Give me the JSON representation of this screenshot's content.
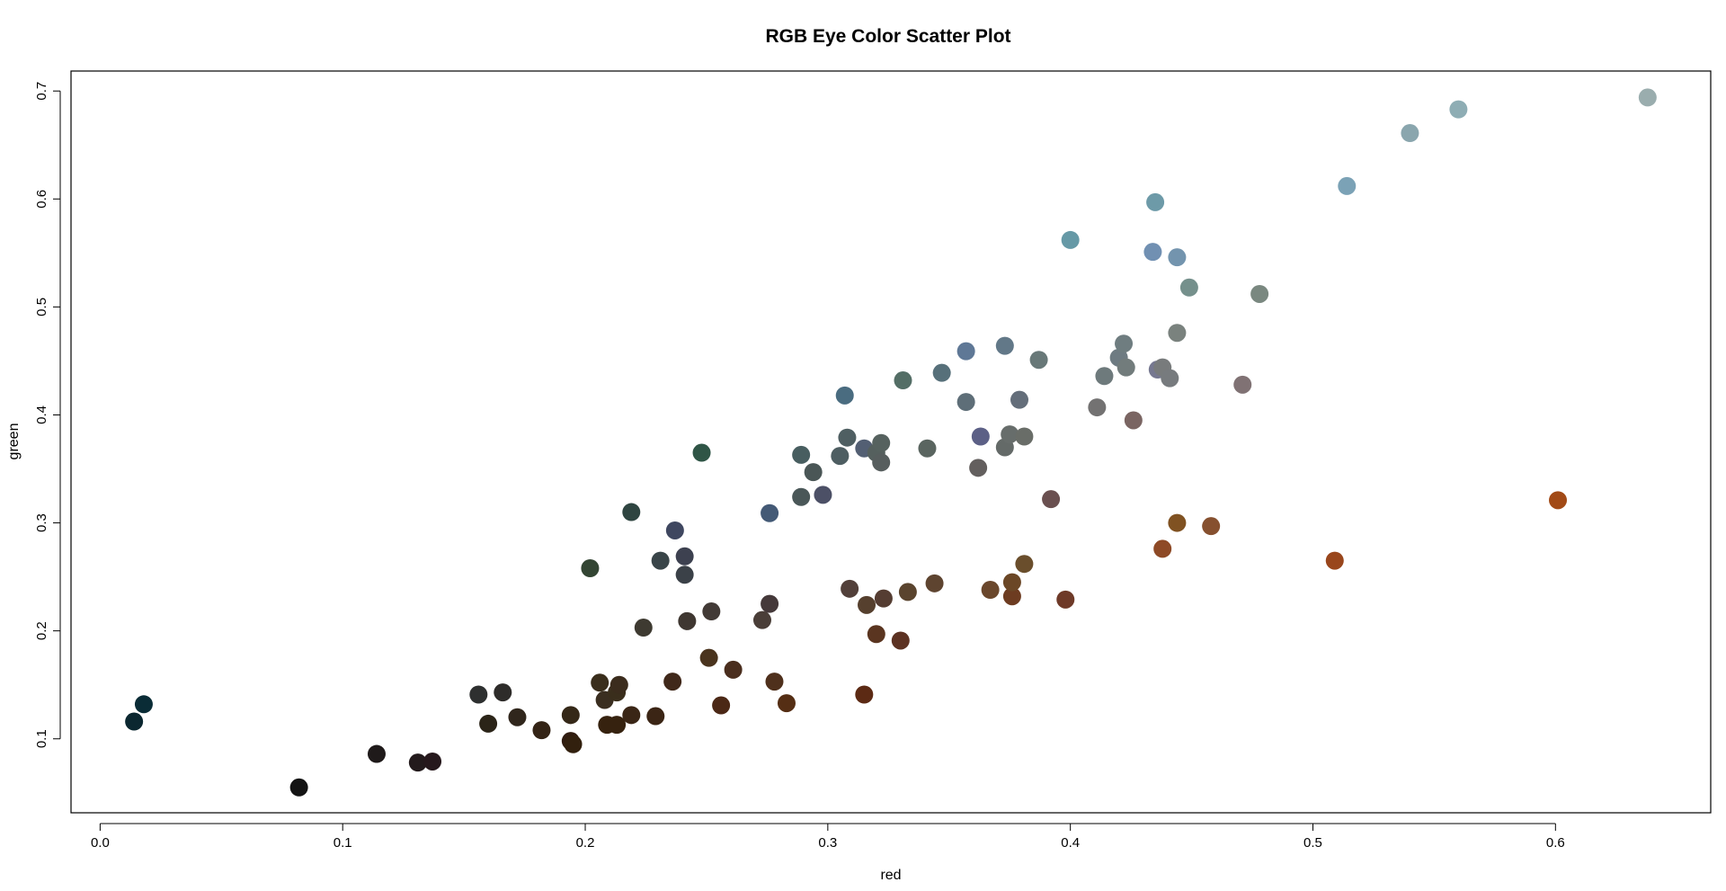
{
  "chart_data": {
    "type": "scatter",
    "title": "RGB Eye Color Scatter Plot",
    "xlabel": "red",
    "ylabel": "green",
    "xlim": [
      -0.012,
      0.664
    ],
    "ylim": [
      0.0315,
      0.7185
    ],
    "xticks": [
      {
        "value": 0.0,
        "label": "0.0"
      },
      {
        "value": 0.1,
        "label": "0.1"
      },
      {
        "value": 0.2,
        "label": "0.2"
      },
      {
        "value": 0.3,
        "label": "0.3"
      },
      {
        "value": 0.4,
        "label": "0.4"
      },
      {
        "value": 0.5,
        "label": "0.5"
      },
      {
        "value": 0.6,
        "label": "0.6"
      }
    ],
    "yticks": [
      {
        "value": 0.1,
        "label": "0.1"
      },
      {
        "value": 0.2,
        "label": "0.2"
      },
      {
        "value": 0.3,
        "label": "0.3"
      },
      {
        "value": 0.4,
        "label": "0.4"
      },
      {
        "value": 0.5,
        "label": "0.5"
      },
      {
        "value": 0.6,
        "label": "0.6"
      },
      {
        "value": 0.7,
        "label": "0.7"
      }
    ],
    "grid": false,
    "points": [
      {
        "x": 0.014,
        "y": 0.116,
        "color": "#0b2730"
      },
      {
        "x": 0.018,
        "y": 0.132,
        "color": "#0a2c36"
      },
      {
        "x": 0.082,
        "y": 0.055,
        "color": "#141414"
      },
      {
        "x": 0.114,
        "y": 0.086,
        "color": "#1f1a1a"
      },
      {
        "x": 0.131,
        "y": 0.078,
        "color": "#231a1c"
      },
      {
        "x": 0.137,
        "y": 0.079,
        "color": "#26181c"
      },
      {
        "x": 0.156,
        "y": 0.141,
        "color": "#2e3030"
      },
      {
        "x": 0.16,
        "y": 0.114,
        "color": "#2b2418"
      },
      {
        "x": 0.166,
        "y": 0.143,
        "color": "#2e2c2a"
      },
      {
        "x": 0.172,
        "y": 0.12,
        "color": "#30261c"
      },
      {
        "x": 0.182,
        "y": 0.108,
        "color": "#342416"
      },
      {
        "x": 0.194,
        "y": 0.122,
        "color": "#352818"
      },
      {
        "x": 0.194,
        "y": 0.098,
        "color": "#301c10"
      },
      {
        "x": 0.195,
        "y": 0.095,
        "color": "#32200e"
      },
      {
        "x": 0.202,
        "y": 0.258,
        "color": "#334533"
      },
      {
        "x": 0.206,
        "y": 0.152,
        "color": "#3a2e1c"
      },
      {
        "x": 0.208,
        "y": 0.136,
        "color": "#3a2e20"
      },
      {
        "x": 0.209,
        "y": 0.113,
        "color": "#36220f"
      },
      {
        "x": 0.213,
        "y": 0.113,
        "color": "#36220f"
      },
      {
        "x": 0.213,
        "y": 0.143,
        "color": "#3a2e1c"
      },
      {
        "x": 0.214,
        "y": 0.15,
        "color": "#3b2c1d"
      },
      {
        "x": 0.219,
        "y": 0.31,
        "color": "#2f4541"
      },
      {
        "x": 0.219,
        "y": 0.122,
        "color": "#3a2616"
      },
      {
        "x": 0.224,
        "y": 0.203,
        "color": "#3e3a31"
      },
      {
        "x": 0.229,
        "y": 0.121,
        "color": "#3b2515"
      },
      {
        "x": 0.231,
        "y": 0.265,
        "color": "#3a4549"
      },
      {
        "x": 0.236,
        "y": 0.153,
        "color": "#40281a"
      },
      {
        "x": 0.237,
        "y": 0.293,
        "color": "#3f4760"
      },
      {
        "x": 0.241,
        "y": 0.269,
        "color": "#3d4150"
      },
      {
        "x": 0.241,
        "y": 0.252,
        "color": "#3b4148"
      },
      {
        "x": 0.242,
        "y": 0.209,
        "color": "#3f3731"
      },
      {
        "x": 0.248,
        "y": 0.365,
        "color": "#2f5546"
      },
      {
        "x": 0.251,
        "y": 0.175,
        "color": "#4a341e"
      },
      {
        "x": 0.252,
        "y": 0.218,
        "color": "#423a36"
      },
      {
        "x": 0.256,
        "y": 0.131,
        "color": "#4b2816"
      },
      {
        "x": 0.261,
        "y": 0.164,
        "color": "#4a2e1e"
      },
      {
        "x": 0.273,
        "y": 0.21,
        "color": "#4a3e38"
      },
      {
        "x": 0.276,
        "y": 0.225,
        "color": "#45393a"
      },
      {
        "x": 0.276,
        "y": 0.309,
        "color": "#445a76"
      },
      {
        "x": 0.278,
        "y": 0.153,
        "color": "#4f301c"
      },
      {
        "x": 0.283,
        "y": 0.133,
        "color": "#552e14"
      },
      {
        "x": 0.289,
        "y": 0.363,
        "color": "#485e60"
      },
      {
        "x": 0.289,
        "y": 0.324,
        "color": "#4a5758"
      },
      {
        "x": 0.294,
        "y": 0.347,
        "color": "#4a5656"
      },
      {
        "x": 0.298,
        "y": 0.326,
        "color": "#4c5066"
      },
      {
        "x": 0.305,
        "y": 0.362,
        "color": "#4e5e62"
      },
      {
        "x": 0.307,
        "y": 0.418,
        "color": "#4a6c80"
      },
      {
        "x": 0.308,
        "y": 0.379,
        "color": "#4f5f62"
      },
      {
        "x": 0.309,
        "y": 0.239,
        "color": "#52403a"
      },
      {
        "x": 0.315,
        "y": 0.141,
        "color": "#5c2a14"
      },
      {
        "x": 0.315,
        "y": 0.369,
        "color": "#535f73"
      },
      {
        "x": 0.316,
        "y": 0.224,
        "color": "#56402e"
      },
      {
        "x": 0.32,
        "y": 0.197,
        "color": "#5a3520"
      },
      {
        "x": 0.32,
        "y": 0.365,
        "color": "#55605e"
      },
      {
        "x": 0.322,
        "y": 0.374,
        "color": "#56625f"
      },
      {
        "x": 0.322,
        "y": 0.356,
        "color": "#575e5e"
      },
      {
        "x": 0.323,
        "y": 0.23,
        "color": "#553d32"
      },
      {
        "x": 0.33,
        "y": 0.191,
        "color": "#5c3222"
      },
      {
        "x": 0.331,
        "y": 0.432,
        "color": "#546e66"
      },
      {
        "x": 0.333,
        "y": 0.236,
        "color": "#5a442e"
      },
      {
        "x": 0.341,
        "y": 0.369,
        "color": "#5a6560"
      },
      {
        "x": 0.344,
        "y": 0.244,
        "color": "#5e4430"
      },
      {
        "x": 0.347,
        "y": 0.439,
        "color": "#57707a"
      },
      {
        "x": 0.357,
        "y": 0.459,
        "color": "#5f7896"
      },
      {
        "x": 0.357,
        "y": 0.412,
        "color": "#5e6e78"
      },
      {
        "x": 0.362,
        "y": 0.351,
        "color": "#635f5e"
      },
      {
        "x": 0.363,
        "y": 0.38,
        "color": "#5c6086"
      },
      {
        "x": 0.367,
        "y": 0.238,
        "color": "#6a472c"
      },
      {
        "x": 0.373,
        "y": 0.37,
        "color": "#646a68"
      },
      {
        "x": 0.373,
        "y": 0.464,
        "color": "#627888"
      },
      {
        "x": 0.375,
        "y": 0.382,
        "color": "#676d6b"
      },
      {
        "x": 0.376,
        "y": 0.232,
        "color": "#6d3c21"
      },
      {
        "x": 0.376,
        "y": 0.245,
        "color": "#6b4726"
      },
      {
        "x": 0.379,
        "y": 0.414,
        "color": "#646e7a"
      },
      {
        "x": 0.381,
        "y": 0.38,
        "color": "#696d68"
      },
      {
        "x": 0.381,
        "y": 0.262,
        "color": "#6a4e2c"
      },
      {
        "x": 0.387,
        "y": 0.451,
        "color": "#687878"
      },
      {
        "x": 0.392,
        "y": 0.322,
        "color": "#6a5050"
      },
      {
        "x": 0.398,
        "y": 0.229,
        "color": "#6e3a28"
      },
      {
        "x": 0.4,
        "y": 0.562,
        "color": "#6699a6"
      },
      {
        "x": 0.411,
        "y": 0.407,
        "color": "#737272"
      },
      {
        "x": 0.414,
        "y": 0.436,
        "color": "#6e7a7c"
      },
      {
        "x": 0.42,
        "y": 0.453,
        "color": "#6e7b82"
      },
      {
        "x": 0.422,
        "y": 0.466,
        "color": "#6f7d80"
      },
      {
        "x": 0.423,
        "y": 0.444,
        "color": "#727c7c"
      },
      {
        "x": 0.426,
        "y": 0.395,
        "color": "#7a6562"
      },
      {
        "x": 0.434,
        "y": 0.551,
        "color": "#7190b2"
      },
      {
        "x": 0.435,
        "y": 0.597,
        "color": "#6d9aa8"
      },
      {
        "x": 0.436,
        "y": 0.442,
        "color": "#767890"
      },
      {
        "x": 0.438,
        "y": 0.444,
        "color": "#787b7c"
      },
      {
        "x": 0.438,
        "y": 0.276,
        "color": "#8e4a26"
      },
      {
        "x": 0.441,
        "y": 0.434,
        "color": "#777b7e"
      },
      {
        "x": 0.444,
        "y": 0.3,
        "color": "#805222"
      },
      {
        "x": 0.444,
        "y": 0.546,
        "color": "#7394ae"
      },
      {
        "x": 0.444,
        "y": 0.476,
        "color": "#7a827e"
      },
      {
        "x": 0.449,
        "y": 0.518,
        "color": "#75908c"
      },
      {
        "x": 0.458,
        "y": 0.297,
        "color": "#86502f"
      },
      {
        "x": 0.471,
        "y": 0.428,
        "color": "#807274"
      },
      {
        "x": 0.478,
        "y": 0.512,
        "color": "#7a8880"
      },
      {
        "x": 0.509,
        "y": 0.265,
        "color": "#99461c"
      },
      {
        "x": 0.514,
        "y": 0.612,
        "color": "#7ba2b6"
      },
      {
        "x": 0.54,
        "y": 0.661,
        "color": "#8aa6ae"
      },
      {
        "x": 0.56,
        "y": 0.683,
        "color": "#8eadb4"
      },
      {
        "x": 0.601,
        "y": 0.321,
        "color": "#a24a16"
      },
      {
        "x": 0.638,
        "y": 0.694,
        "color": "#9aadae"
      }
    ]
  }
}
